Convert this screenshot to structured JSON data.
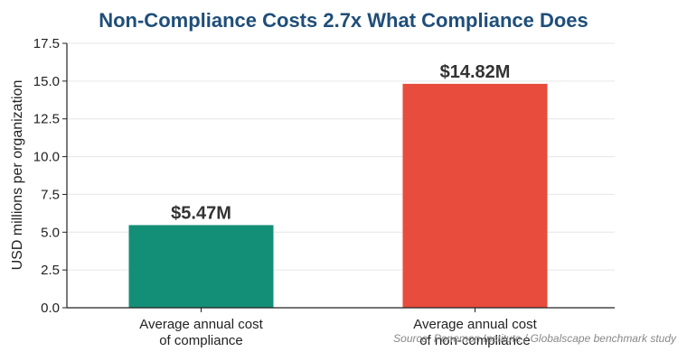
{
  "colors": {
    "title": "#1f4e79",
    "compliance": "#148f77",
    "non_compliance": "#e74c3c",
    "grid": "#e6e6e6",
    "axis": "#222222"
  },
  "chart_data": {
    "type": "bar",
    "title": "Non-Compliance Costs 2.7x What Compliance Does",
    "xlabel": "",
    "ylabel": "USD millions per organization",
    "ylim": [
      0,
      17.5
    ],
    "yticks": [
      "0.0",
      "2.5",
      "5.0",
      "7.5",
      "10.0",
      "12.5",
      "15.0",
      "17.5"
    ],
    "grid": "horizontal",
    "categories": [
      [
        "Average annual cost",
        "of compliance"
      ],
      [
        "Average annual cost",
        "of non-compliance"
      ]
    ],
    "values": [
      5.47,
      14.82
    ],
    "value_labels": [
      "$5.47M",
      "$14.82M"
    ],
    "source": "Source: Ponemon Institute / Globalscape benchmark study"
  }
}
